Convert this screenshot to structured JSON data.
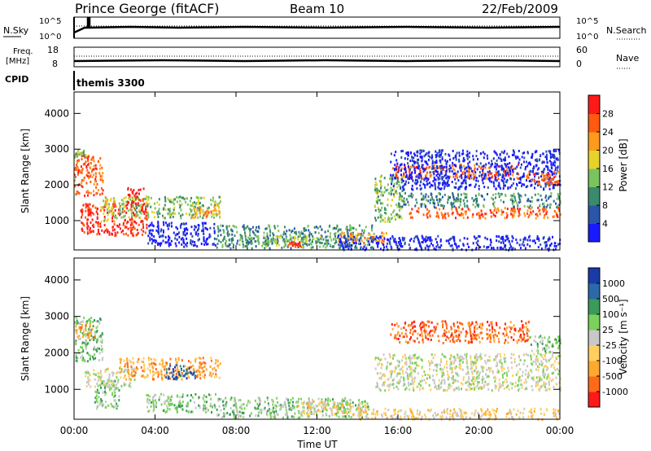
{
  "header": {
    "station": "Prince George (fitACF)",
    "beam": "Beam 10",
    "date": "22/Feb/2009"
  },
  "aux_panels": {
    "nsky": {
      "label": "N.Sky",
      "ticks": [
        "10^5",
        "10^0"
      ]
    },
    "nsearch": {
      "label": "N.Search",
      "ticks": [
        "10^5",
        "10^0"
      ]
    },
    "freq": {
      "label_top": "Freq.",
      "label_bottom": "[MHz]",
      "ticks": [
        "18",
        "8"
      ]
    },
    "nave": {
      "label": "Nave",
      "ticks": [
        "60",
        "0"
      ]
    },
    "cpid": {
      "label": "CPID",
      "value": "themis 3300"
    }
  },
  "colors": {
    "power_scale": [
      "#1a1aff",
      "#2a55a8",
      "#3a8a6e",
      "#7ac35e",
      "#e6d22a",
      "#ff9a1a",
      "#ff5a10",
      "#ff1a1a"
    ],
    "velocity_scale": [
      "#ff1a1a",
      "#ff6a1a",
      "#ffa830",
      "#ffd060",
      "#c8c8c8",
      "#7ad25a",
      "#3a9a5a",
      "#2a6aa8",
      "#1a3aa8"
    ]
  },
  "chart_data": [
    {
      "type": "heatmap",
      "name": "power-panel",
      "ylabel": "Slant Range [km]",
      "xlabel": "",
      "x_ticks": [
        "00:00",
        "04:00",
        "08:00",
        "12:00",
        "16:00",
        "20:00",
        "00:00"
      ],
      "y_ticks": [
        "1000",
        "2000",
        "3000",
        "4000"
      ],
      "ylim": [
        180,
        4600
      ],
      "xlim_hours": [
        0,
        24
      ],
      "colorbar": {
        "title": "Power [dB]",
        "ticks": [
          "4",
          "8",
          "12",
          "16",
          "20",
          "24",
          "28"
        ]
      },
      "regions": [
        {
          "t0": 0.0,
          "t1": 1.4,
          "r0": 1700,
          "r1": 2900,
          "c": 6
        },
        {
          "t0": 0.0,
          "t1": 0.6,
          "r0": 2800,
          "r1": 3000,
          "c": 3
        },
        {
          "t0": 0.3,
          "t1": 3.6,
          "r0": 600,
          "r1": 1500,
          "c": 7
        },
        {
          "t0": 1.3,
          "t1": 2.1,
          "r0": 1000,
          "r1": 1700,
          "c": 4
        },
        {
          "t0": 2.2,
          "t1": 7.2,
          "r0": 1100,
          "r1": 1700,
          "c": 3
        },
        {
          "t0": 2.6,
          "t1": 3.4,
          "r0": 1500,
          "r1": 2000,
          "c": 7
        },
        {
          "t0": 5.8,
          "t1": 7.2,
          "r0": 1100,
          "r1": 1500,
          "c": 5
        },
        {
          "t0": 3.6,
          "t1": 7.0,
          "r0": 300,
          "r1": 1000,
          "c": 0
        },
        {
          "t0": 7.0,
          "t1": 14.8,
          "r0": 250,
          "r1": 900,
          "c": 2
        },
        {
          "t0": 9.0,
          "t1": 13.0,
          "r0": 300,
          "r1": 600,
          "c": 3
        },
        {
          "t0": 10.5,
          "t1": 11.2,
          "r0": 300,
          "r1": 450,
          "c": 7
        },
        {
          "t0": 13.0,
          "t1": 15.5,
          "r0": 400,
          "r1": 700,
          "c": 5
        },
        {
          "t0": 14.8,
          "t1": 16.2,
          "r0": 1000,
          "r1": 2300,
          "c": 3
        },
        {
          "t0": 15.6,
          "t1": 22.0,
          "r0": 2200,
          "r1": 2600,
          "c": 6
        },
        {
          "t0": 15.6,
          "t1": 24.0,
          "r0": 1900,
          "r1": 3000,
          "c": 0
        },
        {
          "t0": 16.5,
          "t1": 24.0,
          "r0": 1100,
          "r1": 1400,
          "c": 6
        },
        {
          "t0": 16.0,
          "t1": 24.0,
          "r0": 1400,
          "r1": 1800,
          "c": 2
        },
        {
          "t0": 22.3,
          "t1": 24.0,
          "r0": 2000,
          "r1": 2400,
          "c": 6
        },
        {
          "t0": 13.0,
          "t1": 24.0,
          "r0": 200,
          "r1": 600,
          "c": 0
        }
      ]
    },
    {
      "type": "heatmap",
      "name": "velocity-panel",
      "ylabel": "Slant Range [km]",
      "xlabel": "Time UT",
      "x_ticks": [
        "00:00",
        "04:00",
        "08:00",
        "12:00",
        "16:00",
        "20:00",
        "00:00"
      ],
      "y_ticks": [
        "1000",
        "2000",
        "3000",
        "4000"
      ],
      "ylim": [
        180,
        4600
      ],
      "xlim_hours": [
        0,
        24
      ],
      "colorbar": {
        "title": "Velocity [m s⁻¹]",
        "ticks": [
          "1000",
          "500",
          "100",
          "25",
          "-25",
          "-100",
          "-500",
          "-1000"
        ]
      },
      "regions": [
        {
          "t0": 0.0,
          "t1": 1.4,
          "r0": 1800,
          "r1": 3000,
          "c": 5
        },
        {
          "t0": 0.0,
          "t1": 1.0,
          "r0": 2400,
          "r1": 2800,
          "c": 2
        },
        {
          "t0": 0.5,
          "t1": 3.0,
          "r0": 1100,
          "r1": 1600,
          "c": 4
        },
        {
          "t0": 1.0,
          "t1": 2.2,
          "r0": 500,
          "r1": 1300,
          "c": 5
        },
        {
          "t0": 2.2,
          "t1": 7.2,
          "r0": 1300,
          "r1": 1900,
          "c": 2
        },
        {
          "t0": 4.5,
          "t1": 6.0,
          "r0": 1300,
          "r1": 1700,
          "c": 7
        },
        {
          "t0": 3.5,
          "t1": 7.0,
          "r0": 400,
          "r1": 900,
          "c": 5
        },
        {
          "t0": 7.0,
          "t1": 14.5,
          "r0": 250,
          "r1": 800,
          "c": 5
        },
        {
          "t0": 11.0,
          "t1": 14.5,
          "r0": 300,
          "r1": 700,
          "c": 3
        },
        {
          "t0": 14.8,
          "t1": 24.0,
          "r0": 1000,
          "r1": 2000,
          "c": 4
        },
        {
          "t0": 15.6,
          "t1": 22.5,
          "r0": 2300,
          "r1": 2900,
          "c": 1
        },
        {
          "t0": 22.5,
          "t1": 24.0,
          "r0": 2000,
          "r1": 2500,
          "c": 5
        },
        {
          "t0": 14.0,
          "t1": 24.0,
          "r0": 200,
          "r1": 500,
          "c": 3
        }
      ]
    }
  ]
}
